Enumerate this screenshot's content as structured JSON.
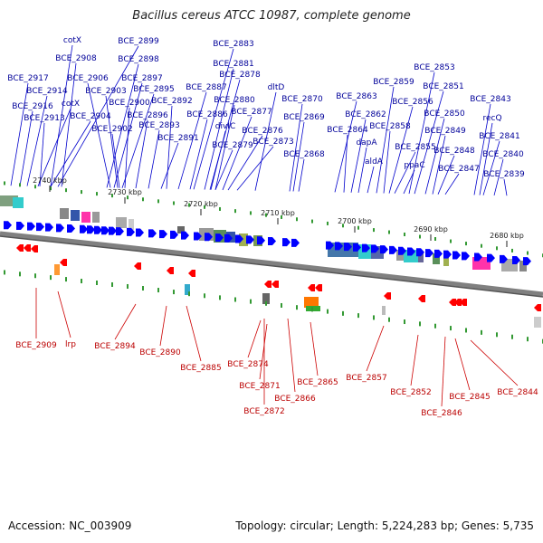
{
  "title": "Bacillus cereus ATCC 10987, complete genome",
  "footer": {
    "accession": "Accession: NC_003909",
    "summary": "Topology: circular; Length: 5,224,283 bp; Genes: 5,735"
  },
  "colors": {
    "forward_gene": "#0000ff",
    "reverse_gene": "#ff0000",
    "forward_label": "#000099",
    "reverse_label": "#bb0000",
    "backbone": "#808080",
    "tick_mark": "#339933"
  },
  "ticks": [
    "2740 kbp",
    "2730 kbp",
    "2720 kbp",
    "2710 kbp",
    "2700 kbp",
    "2690 kbp",
    "2680 kbp"
  ],
  "forward_labels": [
    "cotX",
    "BCE_2899",
    "BCE_2908",
    "BCE_2898",
    "BCE_2917",
    "BCE_2906",
    "BCE_2897",
    "BCE_2914",
    "BCE_2903",
    "BCE_2895",
    "BCE_2916",
    "cotX",
    "BCE_2900",
    "BCE_2913",
    "BCE_2904",
    "BCE_2896",
    "BCE_2902",
    "BCE_2893",
    "BCE_2891",
    "BCE_2892",
    "BCE_2887",
    "BCE_2886",
    "BCE_2883",
    "BCE_2881",
    "BCE_2878",
    "BCE_2880",
    "divIC",
    "BCE_2879",
    "BCE_2877",
    "BCE_2876",
    "BCE_2873",
    "dltD",
    "BCE_2870",
    "BCE_2869",
    "BCE_2868",
    "BCE_2863",
    "BCE_2864",
    "BCE_2862",
    "dapA",
    "aldA",
    "BCE_2859",
    "BCE_2858",
    "BCE_2856",
    "BCE_2855",
    "ppaC",
    "BCE_2853",
    "BCE_2851",
    "BCE_2850",
    "BCE_2849",
    "BCE_2848",
    "BCE_2847",
    "BCE_2843",
    "recQ",
    "BCE_2841",
    "BCE_2840",
    "BCE_2839"
  ],
  "reverse_labels": [
    "BCE_2909",
    "lrp",
    "BCE_2894",
    "BCE_2890",
    "BCE_2885",
    "BCE_2874",
    "BCE_2871",
    "BCE_2872",
    "BCE_2866",
    "BCE_2865",
    "BCE_2857",
    "BCE_2852",
    "BCE_2846",
    "BCE_2845",
    "BCE_2844"
  ]
}
